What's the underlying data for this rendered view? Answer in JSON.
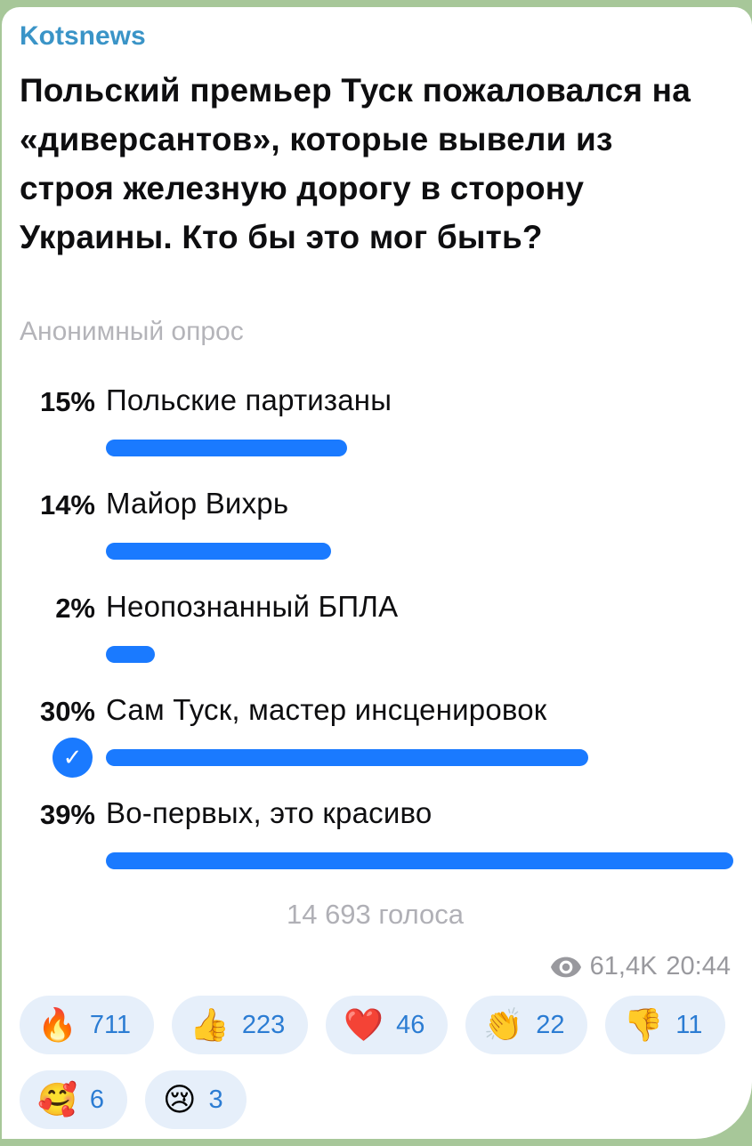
{
  "message": {
    "channel_name": "Kotsnews",
    "question": "Польский премьер Туск пожаловался на «диверсантов», которые вывели из строя железную дорогу в сторону Украины. Кто бы это мог быть?",
    "poll": {
      "type_label": "Анонимный опрос",
      "options": [
        {
          "percent": "15%",
          "value": 15,
          "label": "Польские партизаны",
          "chosen": false
        },
        {
          "percent": "14%",
          "value": 14,
          "label": "Майор Вихрь",
          "chosen": false
        },
        {
          "percent": "2%",
          "value": 2,
          "label": "Неопознанный БПЛА",
          "chosen": false
        },
        {
          "percent": "30%",
          "value": 30,
          "label": "Сам Туск, мастер инсценировок",
          "chosen": true
        },
        {
          "percent": "39%",
          "value": 39,
          "label": "Во-первых, это красиво",
          "chosen": false
        }
      ],
      "votes_label": "14 693 голоса",
      "checkmark_glyph": "✓"
    },
    "meta": {
      "views": "61,4K",
      "time": "20:44"
    },
    "reactions": [
      {
        "emoji": "🔥",
        "count": "711"
      },
      {
        "emoji": "👍",
        "count": "223"
      },
      {
        "emoji": "❤️",
        "count": "46"
      },
      {
        "emoji": "👏",
        "count": "22"
      },
      {
        "emoji": "👎",
        "count": "11"
      },
      {
        "emoji": "🥰",
        "count": "6"
      },
      {
        "emoji": "😢",
        "count": "3"
      }
    ]
  },
  "colors": {
    "accent_blue": "#1a7aff",
    "channel_blue": "#3a94c7",
    "reaction_count_blue": "#2b7cd3",
    "reaction_pill_bg": "#e6effa",
    "muted_gray": "#b4b4b9",
    "meta_gray": "#99999e",
    "chat_background_green": "#a7c799"
  }
}
